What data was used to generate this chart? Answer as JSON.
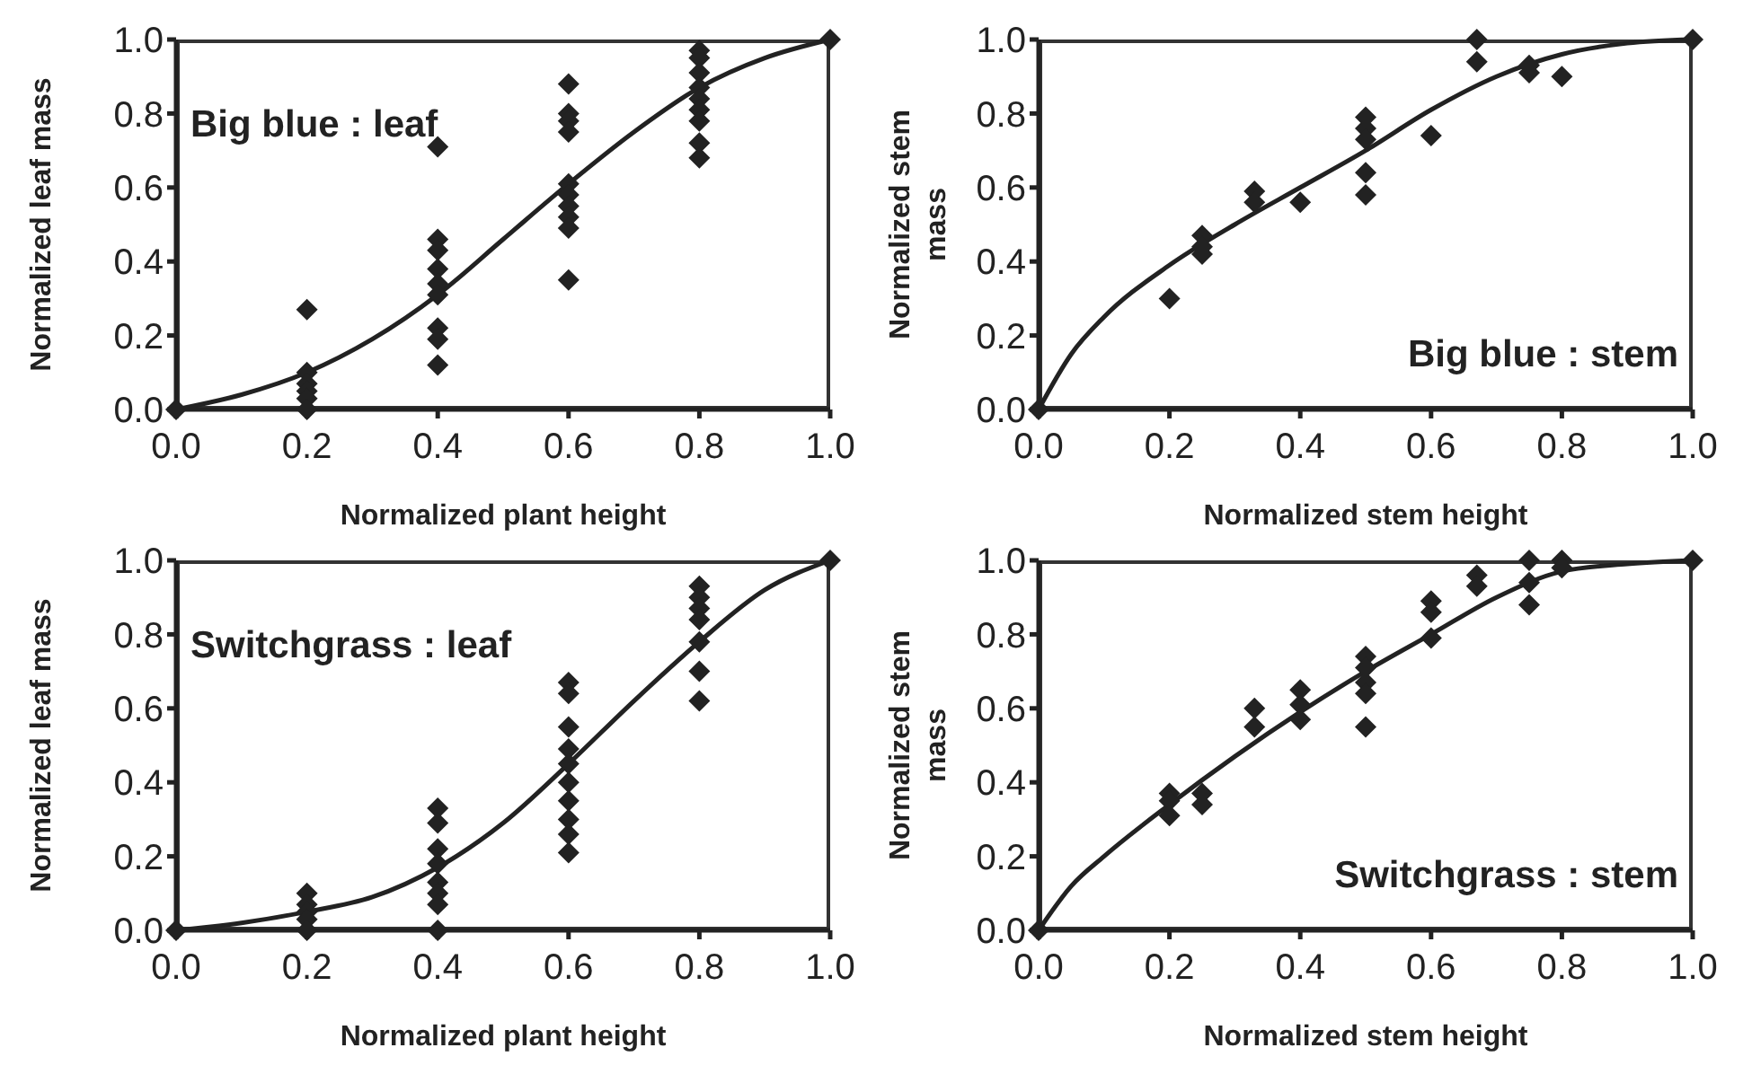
{
  "chart_data": [
    {
      "type": "scatter",
      "xlabel": "Normalized plant height",
      "ylabel": "Normalized leaf mass",
      "annotations": [
        "Big blue : leaf"
      ],
      "xlim": [
        0,
        1
      ],
      "ylim": [
        0,
        1
      ],
      "xticks": [
        {
          "value": 0,
          "label": "0.0"
        },
        {
          "value": 0.2,
          "label": "0.2"
        },
        {
          "value": 0.4,
          "label": "0.4"
        },
        {
          "value": 0.6,
          "label": "0.6"
        },
        {
          "value": 0.8,
          "label": "0.8"
        },
        {
          "value": 1,
          "label": "1.0"
        }
      ],
      "yticks": [
        {
          "value": 0,
          "label": "0.0"
        },
        {
          "value": 0.2,
          "label": "0.2"
        },
        {
          "value": 0.4,
          "label": "0.4"
        },
        {
          "value": 0.6,
          "label": "0.6"
        },
        {
          "value": 0.8,
          "label": "0.8"
        },
        {
          "value": 1,
          "label": "1.0"
        }
      ],
      "series": [
        {
          "marker": "diamond",
          "color": "#222222",
          "x": [
            0,
            0.2,
            0.2,
            0.2,
            0.2,
            0.2,
            0.2,
            0.4,
            0.4,
            0.4,
            0.4,
            0.4,
            0.4,
            0.4,
            0.4,
            0.4,
            0.6,
            0.6,
            0.6,
            0.6,
            0.6,
            0.6,
            0.6,
            0.6,
            0.6,
            0.6,
            0.8,
            0.8,
            0.8,
            0.8,
            0.8,
            0.8,
            0.8,
            0.8,
            0.8,
            1
          ],
          "values": [
            0,
            0.27,
            0.1,
            0.07,
            0.05,
            0.03,
            0,
            0.71,
            0.46,
            0.43,
            0.38,
            0.34,
            0.31,
            0.22,
            0.19,
            0.12,
            0.88,
            0.8,
            0.78,
            0.75,
            0.61,
            0.58,
            0.55,
            0.52,
            0.49,
            0.35,
            0.97,
            0.95,
            0.91,
            0.87,
            0.84,
            0.81,
            0.78,
            0.72,
            0.68,
            1
          ]
        },
        {
          "type": "line",
          "color": "#222222",
          "x": [
            0,
            0.1,
            0.2,
            0.3,
            0.4,
            0.5,
            0.6,
            0.7,
            0.8,
            0.9,
            1
          ],
          "values": [
            0,
            0.04,
            0.1,
            0.19,
            0.31,
            0.46,
            0.61,
            0.75,
            0.87,
            0.95,
            1
          ]
        }
      ]
    },
    {
      "type": "scatter",
      "xlabel": "Normalized stem height",
      "ylabel": "Normalized stem mass",
      "annotations": [
        "Big blue : stem"
      ],
      "xlim": [
        0,
        1
      ],
      "ylim": [
        0,
        1
      ],
      "xticks": [
        {
          "value": 0,
          "label": "0.0"
        },
        {
          "value": 0.2,
          "label": "0.2"
        },
        {
          "value": 0.4,
          "label": "0.4"
        },
        {
          "value": 0.6,
          "label": "0.6"
        },
        {
          "value": 0.8,
          "label": "0.8"
        },
        {
          "value": 1,
          "label": "1.0"
        }
      ],
      "yticks": [
        {
          "value": 0,
          "label": "0.0"
        },
        {
          "value": 0.2,
          "label": "0.2"
        },
        {
          "value": 0.4,
          "label": "0.4"
        },
        {
          "value": 0.6,
          "label": "0.6"
        },
        {
          "value": 0.8,
          "label": "0.8"
        },
        {
          "value": 1,
          "label": "1.0"
        }
      ],
      "series": [
        {
          "marker": "diamond",
          "color": "#222222",
          "x": [
            0,
            0.2,
            0.25,
            0.25,
            0.25,
            0.33,
            0.33,
            0.4,
            0.5,
            0.5,
            0.5,
            0.5,
            0.5,
            0.6,
            0.67,
            0.67,
            0.75,
            0.75,
            0.8,
            1
          ],
          "values": [
            0,
            0.3,
            0.47,
            0.44,
            0.42,
            0.59,
            0.56,
            0.56,
            0.79,
            0.76,
            0.73,
            0.64,
            0.58,
            0.74,
            1,
            0.94,
            0.93,
            0.91,
            0.9,
            1
          ]
        },
        {
          "type": "line",
          "color": "#222222",
          "x": [
            0,
            0.05,
            0.1,
            0.2,
            0.3,
            0.4,
            0.5,
            0.6,
            0.7,
            0.8,
            0.9,
            1
          ],
          "values": [
            0,
            0.15,
            0.25,
            0.39,
            0.5,
            0.6,
            0.7,
            0.81,
            0.9,
            0.96,
            0.99,
            1
          ]
        }
      ]
    },
    {
      "type": "scatter",
      "xlabel": "Normalized plant height",
      "ylabel": "Normalized leaf mass",
      "annotations": [
        "Switchgrass : leaf"
      ],
      "xlim": [
        0,
        1
      ],
      "ylim": [
        0,
        1
      ],
      "xticks": [
        {
          "value": 0,
          "label": "0.0"
        },
        {
          "value": 0.2,
          "label": "0.2"
        },
        {
          "value": 0.4,
          "label": "0.4"
        },
        {
          "value": 0.6,
          "label": "0.6"
        },
        {
          "value": 0.8,
          "label": "0.8"
        },
        {
          "value": 1,
          "label": "1.0"
        }
      ],
      "yticks": [
        {
          "value": 0,
          "label": "0.0"
        },
        {
          "value": 0.2,
          "label": "0.2"
        },
        {
          "value": 0.4,
          "label": "0.4"
        },
        {
          "value": 0.6,
          "label": "0.6"
        },
        {
          "value": 0.8,
          "label": "0.8"
        },
        {
          "value": 1,
          "label": "1.0"
        }
      ],
      "series": [
        {
          "marker": "diamond",
          "color": "#222222",
          "x": [
            0,
            0.2,
            0.2,
            0.2,
            0.2,
            0.2,
            0.4,
            0.4,
            0.4,
            0.4,
            0.4,
            0.4,
            0.4,
            0.4,
            0.6,
            0.6,
            0.6,
            0.6,
            0.6,
            0.6,
            0.6,
            0.6,
            0.6,
            0.6,
            0.8,
            0.8,
            0.8,
            0.8,
            0.8,
            0.8,
            0.8,
            1
          ],
          "values": [
            0,
            0.1,
            0.07,
            0.05,
            0.03,
            0,
            0.33,
            0.29,
            0.22,
            0.18,
            0.13,
            0.1,
            0.07,
            0,
            0.67,
            0.64,
            0.55,
            0.49,
            0.45,
            0.4,
            0.35,
            0.3,
            0.26,
            0.21,
            0.93,
            0.9,
            0.87,
            0.84,
            0.78,
            0.7,
            0.62,
            1
          ]
        },
        {
          "type": "line",
          "color": "#222222",
          "x": [
            0,
            0.1,
            0.2,
            0.3,
            0.4,
            0.5,
            0.6,
            0.7,
            0.8,
            0.9,
            1
          ],
          "values": [
            0,
            0.02,
            0.05,
            0.09,
            0.17,
            0.29,
            0.45,
            0.62,
            0.78,
            0.92,
            1
          ]
        }
      ]
    },
    {
      "type": "scatter",
      "xlabel": "Normalized stem height",
      "ylabel": "Normalized stem mass",
      "annotations": [
        "Switchgrass : stem"
      ],
      "xlim": [
        0,
        1
      ],
      "ylim": [
        0,
        1
      ],
      "xticks": [
        {
          "value": 0,
          "label": "0.0"
        },
        {
          "value": 0.2,
          "label": "0.2"
        },
        {
          "value": 0.4,
          "label": "0.4"
        },
        {
          "value": 0.6,
          "label": "0.6"
        },
        {
          "value": 0.8,
          "label": "0.8"
        },
        {
          "value": 1,
          "label": "1.0"
        }
      ],
      "yticks": [
        {
          "value": 0,
          "label": "0.0"
        },
        {
          "value": 0.2,
          "label": "0.2"
        },
        {
          "value": 0.4,
          "label": "0.4"
        },
        {
          "value": 0.6,
          "label": "0.6"
        },
        {
          "value": 0.8,
          "label": "0.8"
        },
        {
          "value": 1,
          "label": "1.0"
        }
      ],
      "series": [
        {
          "marker": "diamond",
          "color": "#222222",
          "x": [
            0,
            0.2,
            0.2,
            0.2,
            0.25,
            0.25,
            0.33,
            0.33,
            0.4,
            0.4,
            0.4,
            0.5,
            0.5,
            0.5,
            0.5,
            0.5,
            0.6,
            0.6,
            0.6,
            0.67,
            0.67,
            0.75,
            0.75,
            0.75,
            0.8,
            0.8,
            1
          ],
          "values": [
            0,
            0.37,
            0.35,
            0.31,
            0.37,
            0.34,
            0.6,
            0.55,
            0.65,
            0.61,
            0.57,
            0.74,
            0.71,
            0.67,
            0.64,
            0.55,
            0.89,
            0.86,
            0.79,
            0.96,
            0.93,
            1,
            0.94,
            0.88,
            1,
            0.98,
            1
          ]
        },
        {
          "type": "line",
          "color": "#222222",
          "x": [
            0,
            0.05,
            0.1,
            0.2,
            0.3,
            0.4,
            0.5,
            0.6,
            0.7,
            0.8,
            0.9,
            1
          ],
          "values": [
            0,
            0.12,
            0.2,
            0.34,
            0.47,
            0.59,
            0.7,
            0.8,
            0.9,
            0.97,
            0.99,
            1
          ]
        }
      ]
    }
  ]
}
